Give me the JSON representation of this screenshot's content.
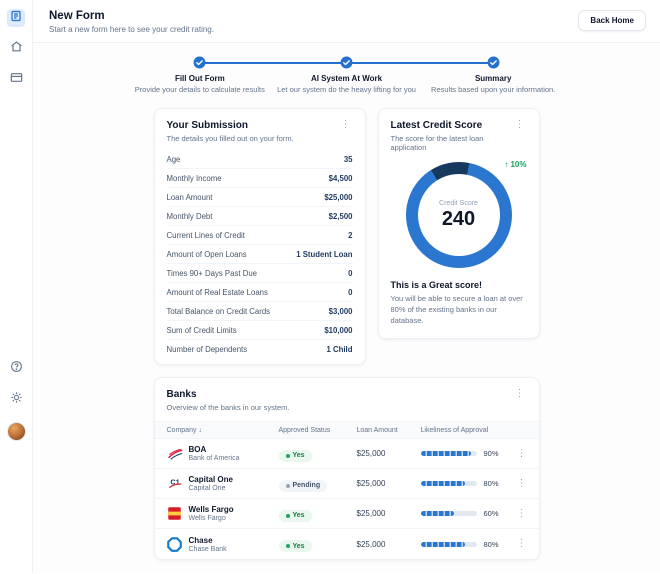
{
  "colors": {
    "accent": "#2470cf",
    "success": "#18a05a"
  },
  "header": {
    "title": "New Form",
    "subtitle": "Start a new form here to see your credit rating.",
    "back_button": "Back Home"
  },
  "stepper": {
    "steps": [
      {
        "label": "Fill Out Form",
        "desc": "Provide your details to calculate results"
      },
      {
        "label": "AI System At Work",
        "desc": "Let our system do the heavy lifting for you"
      },
      {
        "label": "Summary",
        "desc": "Results based upon your information."
      }
    ]
  },
  "submission": {
    "title": "Your Submission",
    "subtitle": "The details you filled out on your form.",
    "rows": [
      {
        "label": "Age",
        "value": "35"
      },
      {
        "label": "Monthly Income",
        "value": "$4,500"
      },
      {
        "label": "Loan Amount",
        "value": "$25,000"
      },
      {
        "label": "Monthly Debt",
        "value": "$2,500"
      },
      {
        "label": "Current Lines of Credit",
        "value": "2"
      },
      {
        "label": "Amount of Open Loans",
        "value": "1 Student Loan"
      },
      {
        "label": "Times 90+ Days Past Due",
        "value": "0"
      },
      {
        "label": "Amount of Real Estate Loans",
        "value": "0"
      },
      {
        "label": "Total Balance on Credit Cards",
        "value": "$3,000"
      },
      {
        "label": "Sum of Credit Limits",
        "value": "$10,000"
      },
      {
        "label": "Number of Dependents",
        "value": "1 Child"
      }
    ]
  },
  "score": {
    "title": "Latest Credit Score",
    "subtitle": "The score for the latest loan application",
    "change_arrow": "↑",
    "change": "10%",
    "gauge_label": "Credit Score",
    "value": "240",
    "headline": "This is a Great score!",
    "body": "You will be able to secure a loan at over 80% of the existing banks in our database."
  },
  "banks": {
    "title": "Banks",
    "subtitle": "Overview of the banks in our system.",
    "columns": [
      "Company",
      "Approved Status",
      "Loan Amount",
      "Likeliness of Approval"
    ],
    "rows": [
      {
        "name": "BOA",
        "subname": "Bank of America",
        "status": "Yes",
        "amount": "$25,000",
        "approval": "90%"
      },
      {
        "name": "Capital One",
        "subname": "Capital One",
        "status": "Pending",
        "amount": "$25,000",
        "approval": "80%"
      },
      {
        "name": "Wells Fargo",
        "subname": "Wells Fargo",
        "status": "Yes",
        "amount": "$25,000",
        "approval": "60%"
      },
      {
        "name": "Chase",
        "subname": "Chase Bank",
        "status": "Yes",
        "amount": "$25,000",
        "approval": "80%"
      }
    ]
  }
}
